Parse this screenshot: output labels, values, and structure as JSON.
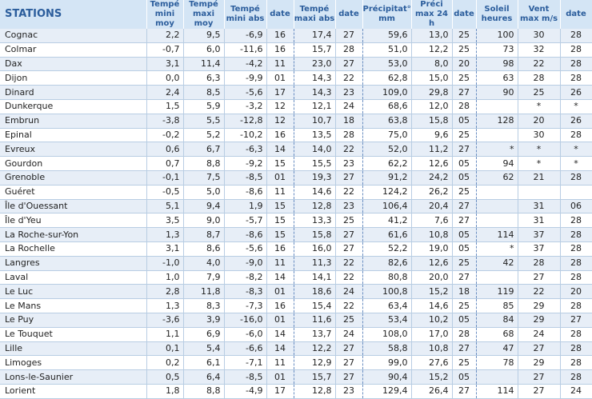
{
  "headers": [
    "STATIONS",
    "Tempé mini moy",
    "Tempé maxi moy",
    "Tempé mini abs",
    "date",
    "Tempé maxi abs",
    "date",
    "Précipitat° mm",
    "Préci max 24 h",
    "date",
    "Soleil heures",
    "Vent max m/s",
    "date"
  ],
  "rows": [
    [
      "Cognac",
      "2,2",
      "9,5",
      "-6,9",
      "16",
      "17,4",
      "27",
      "59,6",
      "13,0",
      "25",
      "100",
      "30",
      "28"
    ],
    [
      "Colmar",
      "-0,7",
      "6,0",
      "-11,6",
      "16",
      "15,7",
      "28",
      "51,0",
      "12,2",
      "25",
      "73",
      "32",
      "28"
    ],
    [
      "Dax",
      "3,1",
      "11,4",
      "-4,2",
      "11",
      "23,0",
      "27",
      "53,0",
      "8,0",
      "20",
      "98",
      "22",
      "28"
    ],
    [
      "Dijon",
      "0,0",
      "6,3",
      "-9,9",
      "01",
      "14,3",
      "22",
      "62,8",
      "15,0",
      "25",
      "63",
      "28",
      "28"
    ],
    [
      "Dinard",
      "2,4",
      "8,5",
      "-5,6",
      "17",
      "14,3",
      "23",
      "109,0",
      "29,8",
      "27",
      "90",
      "25",
      "26"
    ],
    [
      "Dunkerque",
      "1,5",
      "5,9",
      "-3,2",
      "12",
      "12,1",
      "24",
      "68,6",
      "12,0",
      "28",
      "",
      "*",
      "*"
    ],
    [
      "Embrun",
      "-3,8",
      "5,5",
      "-12,8",
      "12",
      "10,7",
      "18",
      "63,8",
      "15,8",
      "05",
      "128",
      "20",
      "26"
    ],
    [
      "Epinal",
      "-0,2",
      "5,2",
      "-10,2",
      "16",
      "13,5",
      "28",
      "75,0",
      "9,6",
      "25",
      "",
      "30",
      "28"
    ],
    [
      "Evreux",
      "0,6",
      "6,7",
      "-6,3",
      "14",
      "14,0",
      "22",
      "52,0",
      "11,2",
      "27",
      "*",
      "*",
      "*"
    ],
    [
      "Gourdon",
      "0,7",
      "8,8",
      "-9,2",
      "15",
      "15,5",
      "23",
      "62,2",
      "12,6",
      "05",
      "94",
      "*",
      "*"
    ],
    [
      "Grenoble",
      "-0,1",
      "7,5",
      "-8,5",
      "01",
      "19,3",
      "27",
      "91,2",
      "24,2",
      "05",
      "62",
      "21",
      "28"
    ],
    [
      "Guéret",
      "-0,5",
      "5,0",
      "-8,6",
      "11",
      "14,6",
      "22",
      "124,2",
      "26,2",
      "25",
      "",
      "",
      ""
    ],
    [
      "Île d'Ouessant",
      "5,1",
      "9,4",
      "1,9",
      "15",
      "12,8",
      "23",
      "106,4",
      "20,4",
      "27",
      "",
      "31",
      "06"
    ],
    [
      "Île d'Yeu",
      "3,5",
      "9,0",
      "-5,7",
      "15",
      "13,3",
      "25",
      "41,2",
      "7,6",
      "27",
      "",
      "31",
      "28"
    ],
    [
      "La Roche-sur-Yon",
      "1,3",
      "8,7",
      "-8,6",
      "15",
      "15,8",
      "27",
      "61,6",
      "10,8",
      "05",
      "114",
      "37",
      "28"
    ],
    [
      "La Rochelle",
      "3,1",
      "8,6",
      "-5,6",
      "16",
      "16,0",
      "27",
      "52,2",
      "19,0",
      "05",
      "*",
      "37",
      "28"
    ],
    [
      "Langres",
      "-1,0",
      "4,0",
      "-9,0",
      "11",
      "11,3",
      "22",
      "82,6",
      "12,6",
      "25",
      "42",
      "28",
      "28"
    ],
    [
      "Laval",
      "1,0",
      "7,9",
      "-8,2",
      "14",
      "14,1",
      "22",
      "80,8",
      "20,0",
      "27",
      "",
      "27",
      "28"
    ],
    [
      "Le Luc",
      "2,8",
      "11,8",
      "-8,3",
      "01",
      "18,6",
      "24",
      "100,8",
      "15,2",
      "18",
      "119",
      "22",
      "20"
    ],
    [
      "Le Mans",
      "1,3",
      "8,3",
      "-7,3",
      "16",
      "15,4",
      "22",
      "63,4",
      "14,6",
      "25",
      "85",
      "29",
      "28"
    ],
    [
      "Le Puy",
      "-3,6",
      "3,9",
      "-16,0",
      "01",
      "11,6",
      "25",
      "53,4",
      "10,2",
      "05",
      "84",
      "29",
      "27"
    ],
    [
      "Le Touquet",
      "1,1",
      "6,9",
      "-6,0",
      "14",
      "13,7",
      "24",
      "108,0",
      "17,0",
      "28",
      "68",
      "24",
      "28"
    ],
    [
      "Lille",
      "0,1",
      "5,4",
      "-6,6",
      "14",
      "12,2",
      "27",
      "58,8",
      "10,8",
      "27",
      "47",
      "27",
      "28"
    ],
    [
      "Limoges",
      "0,2",
      "6,1",
      "-7,1",
      "11",
      "12,9",
      "27",
      "99,0",
      "27,6",
      "25",
      "78",
      "29",
      "28"
    ],
    [
      "Lons-le-Saunier",
      "0,5",
      "6,4",
      "-8,5",
      "01",
      "15,7",
      "27",
      "90,4",
      "15,2",
      "05",
      "",
      "27",
      "28"
    ],
    [
      "Lorient",
      "1,8",
      "8,8",
      "-4,9",
      "17",
      "12,8",
      "23",
      "129,4",
      "26,4",
      "27",
      "114",
      "27",
      "24"
    ]
  ]
}
